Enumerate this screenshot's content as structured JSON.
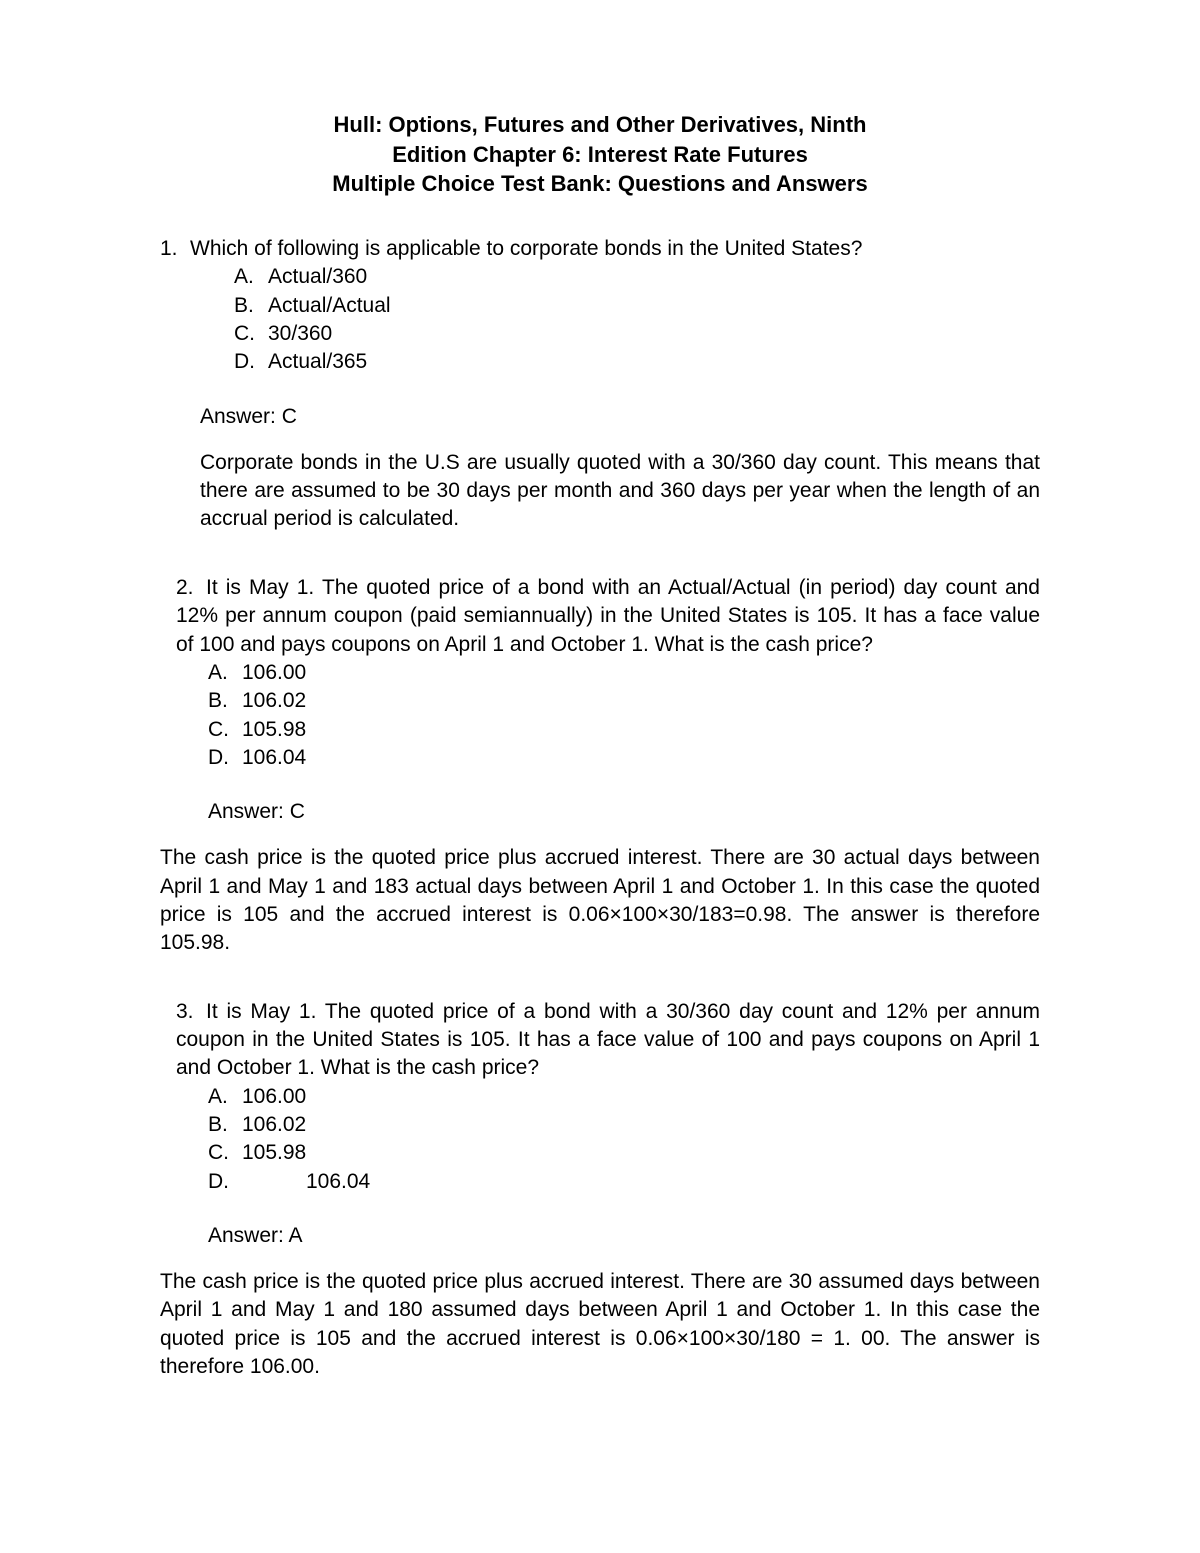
{
  "title": {
    "line1": "Hull: Options, Futures and Other Derivatives, Ninth",
    "line2": "Edition Chapter 6: Interest Rate Futures",
    "line3": "Multiple Choice Test Bank: Questions and Answers"
  },
  "q1": {
    "num": "1.",
    "stem": "Which of following is applicable to corporate bonds in the United States?",
    "options": {
      "A": "Actual/360",
      "B": "Actual/Actual",
      "C": "30/360",
      "D": "Actual/365"
    },
    "answer": "Answer: C",
    "explain": "Corporate bonds in the U.S are usually quoted with a 30/360 day count. This means that there are assumed to be 30 days per month and 360 days per year when the length of an accrual period is calculated."
  },
  "q2": {
    "num": "2.",
    "stem": "It is May 1. The quoted price of a bond with an Actual/Actual (in period) day count and 12% per annum coupon (paid semiannually) in the United States is 105. It has a face value of 100 and pays coupons on April 1 and October 1. What is the cash price?",
    "options": {
      "A": "106.00",
      "B": "106.02",
      "C": "105.98",
      "D": "106.04"
    },
    "answer": "Answer: C",
    "explain": "The cash price is the quoted price plus accrued interest. There are 30 actual days between April 1 and May 1 and 183 actual days between April 1 and October 1. In this case the quoted price is 105 and the accrued interest is 0.06×100×30/183=0.98. The answer is therefore 105.98."
  },
  "q3": {
    "num": "3.",
    "stem": "It is May 1. The quoted price of a bond with a 30/360 day count and 12% per annum coupon in the United States is 105. It has a face value of 100 and pays coupons on April 1 and October 1. What is the cash price?",
    "options": {
      "A": "106.00",
      "B": "106.02",
      "C": "105.98",
      "D": "106.04"
    },
    "answer": "Answer: A",
    "explain": "The cash price is the quoted price plus accrued interest. There are 30 assumed days between April 1 and May 1 and 180 assumed days between April 1 and October 1. In this case the quoted price is 105 and the accrued interest is 0.06×100×30/180 = 1. 00. The answer is therefore 106.00."
  }
}
